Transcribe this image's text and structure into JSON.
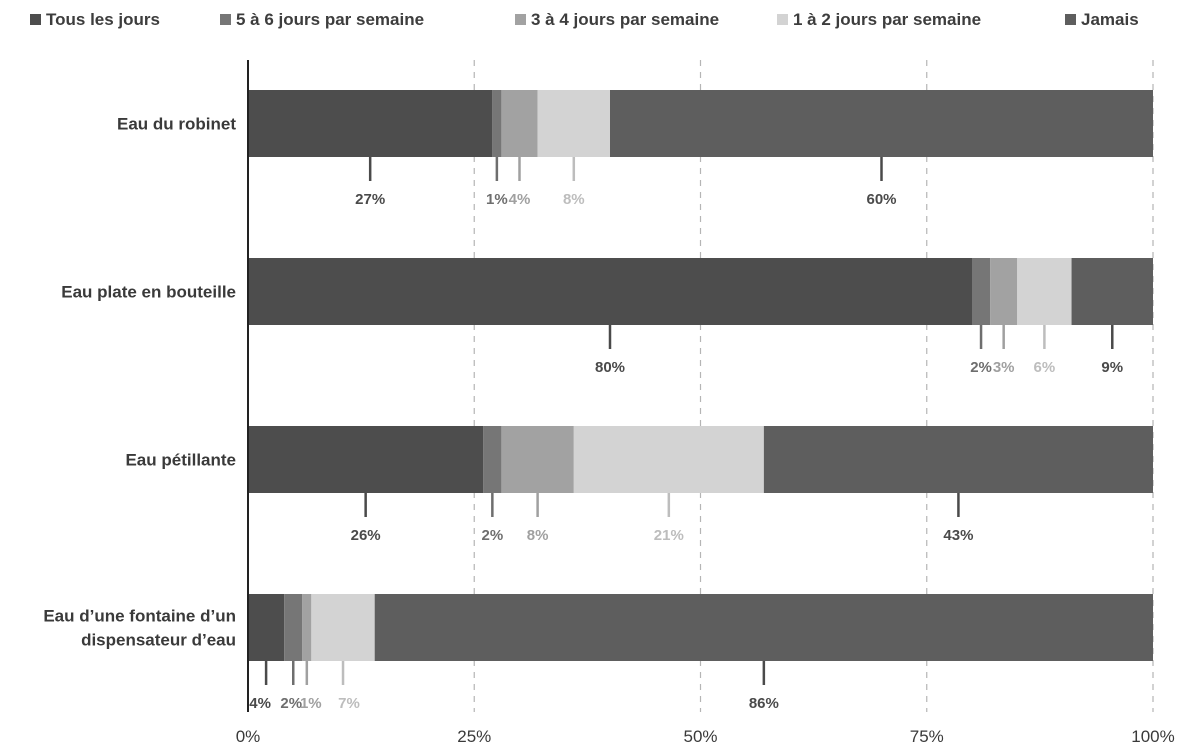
{
  "chart_data": {
    "type": "bar",
    "orientation": "horizontal",
    "stacked": true,
    "categories": [
      [
        "Eau du robinet"
      ],
      [
        "Eau plate en bouteille"
      ],
      [
        "Eau pétillante"
      ],
      [
        "Eau d’une fontaine d’un",
        "dispensateur d’eau"
      ]
    ],
    "series": [
      {
        "name": "Tous les jours",
        "values": [
          27,
          80,
          26,
          4
        ],
        "labels": [
          "27%",
          "80%",
          "26%",
          "4%"
        ]
      },
      {
        "name": "5 à 6 jours par semaine",
        "values": [
          1,
          2,
          2,
          2
        ],
        "labels": [
          "1%",
          "2%",
          "2%",
          "2%"
        ]
      },
      {
        "name": "3 à 4 jours par semaine",
        "values": [
          4,
          3,
          8,
          1
        ],
        "labels": [
          "4%",
          "3%",
          "8%",
          "1%"
        ]
      },
      {
        "name": "1 à 2 jours par semaine",
        "values": [
          8,
          6,
          21,
          7
        ],
        "labels": [
          "8%",
          "6%",
          "21%",
          "7%"
        ]
      },
      {
        "name": "Jamais",
        "values": [
          60,
          9,
          43,
          86
        ],
        "labels": [
          "60%",
          "9%",
          "43%",
          "86%"
        ]
      }
    ],
    "series_colors": [
      "#4d4d4d",
      "#767676",
      "#a2a2a2",
      "#d3d3d3",
      "#5e5e5e"
    ],
    "label_colors": [
      "#4a4a4a",
      "#6e6e6e",
      "#a0a0a0",
      "#bdbdbd",
      "#4a4a4a"
    ],
    "xlim": [
      0,
      100
    ],
    "x_ticks": [
      "0%",
      "25%",
      "50%",
      "75%",
      "100%"
    ],
    "grid": "vertical-dashed",
    "legend_position": "top",
    "title": "",
    "xlabel": "",
    "ylabel": ""
  }
}
